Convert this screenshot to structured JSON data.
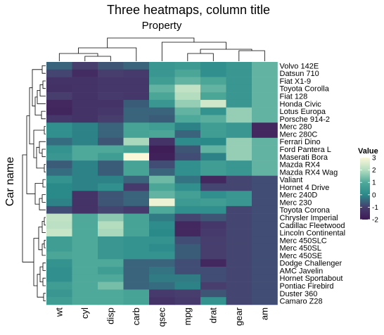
{
  "chart_data": {
    "type": "heatmap",
    "title": "Three heatmaps, column title",
    "column_title": "Property",
    "ylabel": "Car name",
    "columns": [
      "wt",
      "cyl",
      "disp",
      "carb",
      "qsec",
      "mpg",
      "drat",
      "gear",
      "am"
    ],
    "rows": [
      "Volvo 142E",
      "Datsun 710",
      "Fiat X1-9",
      "Toyota Corolla",
      "Fiat 128",
      "Honda Civic",
      "Lotus Europa",
      "Porsche 914-2",
      "Merc 280",
      "Merc 280C",
      "Ferrari Dino",
      "Ford Pantera L",
      "Maserati Bora",
      "Mazda RX4",
      "Mazda RX4 Wag",
      "Valiant",
      "Hornet 4 Drive",
      "Merc 240D",
      "Merc 230",
      "Toyota Corona",
      "Chrysler Imperial",
      "Cadillac Fleetwood",
      "Lincoln Continental",
      "Merc 450SLC",
      "Merc 450SL",
      "Merc 450SE",
      "Dodge Challenger",
      "AMC Javelin",
      "Hornet Sportabout",
      "Pontiac Firebird",
      "Duster 360",
      "Camaro Z28"
    ],
    "values": [
      [
        -0.5,
        -1.0,
        -0.7,
        -0.5,
        0.4,
        0.5,
        0.2,
        0.4,
        1.2
      ],
      [
        -0.9,
        -1.5,
        -1.0,
        -1.1,
        0.4,
        0.9,
        0.2,
        0.4,
        1.2
      ],
      [
        -1.3,
        -1.3,
        -1.2,
        -1.2,
        0.6,
        1.2,
        0.9,
        0.4,
        1.2
      ],
      [
        -1.4,
        -1.3,
        -1.2,
        -1.2,
        1.2,
        2.2,
        1.2,
        0.4,
        1.2
      ],
      [
        -1.0,
        -1.3,
        -1.1,
        -1.2,
        0.9,
        2.0,
        0.9,
        0.4,
        1.2
      ],
      [
        -1.6,
        -1.3,
        -1.3,
        -0.6,
        0.4,
        1.7,
        2.4,
        0.4,
        1.2
      ],
      [
        -1.7,
        -1.3,
        -1.2,
        -0.5,
        -0.5,
        1.2,
        0.3,
        1.7,
        1.2
      ],
      [
        -1.2,
        -1.3,
        -1.0,
        -0.5,
        -0.6,
        1.0,
        1.1,
        1.7,
        1.2
      ],
      [
        0.2,
        -0.1,
        -0.5,
        0.8,
        0.6,
        -0.1,
        0.6,
        0.4,
        -1.6
      ],
      [
        0.2,
        -0.1,
        -0.5,
        0.8,
        0.9,
        -0.5,
        0.6,
        0.4,
        -1.6
      ],
      [
        -0.4,
        -0.1,
        -0.7,
        1.9,
        -1.3,
        0.1,
        0.0,
        1.7,
        1.2
      ],
      [
        0.3,
        1.0,
        1.0,
        0.8,
        -1.9,
        -0.7,
        1.2,
        1.7,
        1.2
      ],
      [
        0.4,
        1.0,
        0.6,
        3.0,
        -1.8,
        -0.8,
        -0.1,
        1.7,
        1.2
      ],
      [
        -0.6,
        -0.1,
        -0.6,
        0.8,
        -0.8,
        0.2,
        0.6,
        0.4,
        1.2
      ],
      [
        -0.4,
        -0.1,
        -0.6,
        0.8,
        -0.5,
        0.2,
        0.6,
        0.4,
        1.2
      ],
      [
        0.3,
        -0.1,
        -0.1,
        -0.5,
        1.3,
        -0.3,
        -1.6,
        -0.9,
        -0.8
      ],
      [
        0.0,
        -0.1,
        0.2,
        -1.1,
        0.9,
        0.2,
        -0.9,
        -0.9,
        -0.8
      ],
      [
        0.0,
        -1.3,
        -0.7,
        -0.5,
        1.2,
        0.7,
        0.2,
        0.4,
        -0.8
      ],
      [
        -0.1,
        -1.3,
        -0.7,
        -0.5,
        2.8,
        0.5,
        0.6,
        0.4,
        -0.8
      ],
      [
        -0.8,
        -1.3,
        -0.9,
        -1.1,
        1.0,
        0.2,
        0.2,
        -0.9,
        -0.8
      ],
      [
        2.2,
        1.0,
        1.6,
        0.8,
        -0.2,
        -0.9,
        -0.7,
        -0.9,
        -0.8
      ],
      [
        2.1,
        1.0,
        2.0,
        0.8,
        0.1,
        -1.6,
        -1.2,
        -0.9,
        -0.8
      ],
      [
        2.3,
        1.0,
        1.9,
        0.8,
        -0.0,
        -1.6,
        -1.1,
        -0.9,
        -0.8
      ],
      [
        0.6,
        1.0,
        0.4,
        0.3,
        0.3,
        -0.8,
        -1.0,
        -0.9,
        -0.8
      ],
      [
        0.6,
        1.0,
        0.4,
        0.3,
        0.1,
        -0.6,
        -1.0,
        -0.9,
        -0.8
      ],
      [
        0.9,
        1.0,
        0.4,
        0.3,
        0.3,
        -0.6,
        -1.0,
        -0.9,
        -0.8
      ],
      [
        0.3,
        1.0,
        1.0,
        -0.5,
        -0.5,
        -0.8,
        -1.6,
        -0.9,
        -0.8
      ],
      [
        0.2,
        1.0,
        0.6,
        -0.5,
        -0.3,
        -0.8,
        -0.8,
        -0.9,
        -0.8
      ],
      [
        0.2,
        1.0,
        1.0,
        -0.5,
        -0.2,
        -0.2,
        -0.8,
        -0.9,
        -0.8
      ],
      [
        0.6,
        1.0,
        1.4,
        -0.5,
        -0.4,
        -0.1,
        -1.0,
        -0.9,
        -0.8
      ],
      [
        0.4,
        1.0,
        1.0,
        0.8,
        -1.1,
        -1.0,
        -0.7,
        -0.9,
        -0.8
      ],
      [
        0.6,
        1.0,
        1.0,
        0.8,
        -1.3,
        -1.1,
        0.3,
        -0.9,
        -0.8
      ]
    ],
    "legend": {
      "title": "Value",
      "ticks": [
        "3",
        "2",
        "1",
        "0",
        "-1",
        "-2"
      ],
      "colors": [
        "#3e1a55",
        "#2a8a8a",
        "#fbf7d9"
      ],
      "range": [
        -2,
        3
      ],
      "position": "right"
    }
  }
}
